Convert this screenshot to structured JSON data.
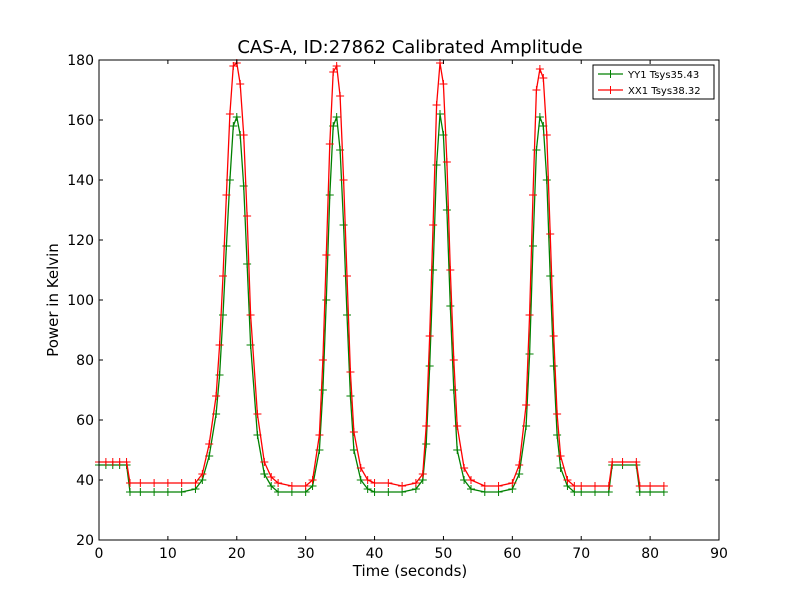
{
  "chart_data": {
    "type": "line",
    "title": "CAS-A, ID:27862 Calibrated Amplitude",
    "xlabel": "Time (seconds)",
    "ylabel": "Power in Kelvin",
    "xlim": [
      0,
      90
    ],
    "ylim": [
      20,
      180
    ],
    "xticks": [
      "0",
      "10",
      "20",
      "30",
      "40",
      "50",
      "60",
      "70",
      "80",
      "90"
    ],
    "yticks": [
      "20",
      "40",
      "60",
      "80",
      "100",
      "120",
      "140",
      "160",
      "180"
    ],
    "grid": false,
    "legend_position": "top-right",
    "series": [
      {
        "name": "YY1 Tsys35.43",
        "color": "#008000",
        "marker": "plus",
        "x": [
          0,
          1,
          2,
          3,
          4,
          4.5,
          6,
          8,
          10,
          12,
          14,
          15,
          16,
          17,
          17.5,
          18,
          18.5,
          19,
          19.5,
          20,
          20.5,
          21,
          21.5,
          22,
          23,
          24,
          25,
          26,
          28,
          30,
          31,
          32,
          32.5,
          33,
          33.5,
          34,
          34.5,
          35,
          35.5,
          36,
          36.5,
          37,
          38,
          39,
          40,
          42,
          44,
          46,
          47,
          47.5,
          48,
          48.5,
          49,
          49.5,
          50,
          50.5,
          51,
          51.5,
          52,
          53,
          54,
          56,
          58,
          60,
          61,
          62,
          62.5,
          63,
          63.5,
          64,
          64.5,
          65,
          65.5,
          66,
          66.5,
          67,
          68,
          69,
          70,
          72,
          74,
          74.5,
          76,
          78,
          78.5,
          80,
          82
        ],
        "y": [
          45,
          45,
          45,
          45,
          45,
          36,
          36,
          36,
          36,
          36,
          37,
          40,
          48,
          62,
          75,
          95,
          118,
          140,
          158,
          161,
          155,
          138,
          112,
          85,
          55,
          42,
          38,
          36,
          36,
          36,
          38,
          50,
          70,
          100,
          135,
          158,
          161,
          150,
          125,
          95,
          68,
          50,
          40,
          37,
          36,
          36,
          36,
          37,
          40,
          52,
          78,
          110,
          145,
          162,
          155,
          130,
          98,
          70,
          50,
          40,
          37,
          36,
          36,
          37,
          42,
          58,
          82,
          118,
          150,
          161,
          158,
          140,
          108,
          78,
          55,
          44,
          38,
          36,
          36,
          36,
          36,
          45,
          45,
          45,
          36,
          36,
          36
        ]
      },
      {
        "name": "XX1 Tsys38.32",
        "color": "#ff0000",
        "marker": "plus",
        "x": [
          0,
          1,
          2,
          3,
          4,
          4.5,
          6,
          8,
          10,
          12,
          14,
          15,
          16,
          17,
          17.5,
          18,
          18.5,
          19,
          19.5,
          20,
          20.5,
          21,
          21.5,
          22,
          23,
          24,
          25,
          26,
          28,
          30,
          31,
          32,
          32.5,
          33,
          33.5,
          34,
          34.5,
          35,
          35.5,
          36,
          36.5,
          37,
          38,
          39,
          40,
          42,
          44,
          46,
          47,
          47.5,
          48,
          48.5,
          49,
          49.5,
          50,
          50.5,
          51,
          51.5,
          52,
          53,
          54,
          56,
          58,
          60,
          61,
          62,
          62.5,
          63,
          63.5,
          64,
          64.5,
          65,
          65.5,
          66,
          66.5,
          67,
          68,
          69,
          70,
          72,
          74,
          74.5,
          76,
          78,
          78.5,
          80,
          82
        ],
        "y": [
          46,
          46,
          46,
          46,
          46,
          39,
          39,
          39,
          39,
          39,
          39,
          42,
          52,
          68,
          85,
          108,
          135,
          162,
          178,
          179,
          172,
          155,
          128,
          95,
          62,
          46,
          41,
          39,
          38,
          38,
          40,
          55,
          80,
          115,
          152,
          176,
          178,
          168,
          140,
          108,
          76,
          56,
          44,
          40,
          39,
          39,
          38,
          39,
          42,
          58,
          88,
          125,
          165,
          179,
          172,
          146,
          110,
          80,
          58,
          44,
          40,
          38,
          38,
          39,
          45,
          65,
          95,
          135,
          170,
          177,
          174,
          155,
          122,
          88,
          62,
          48,
          40,
          38,
          38,
          38,
          38,
          46,
          46,
          46,
          38,
          38,
          38
        ]
      }
    ]
  }
}
